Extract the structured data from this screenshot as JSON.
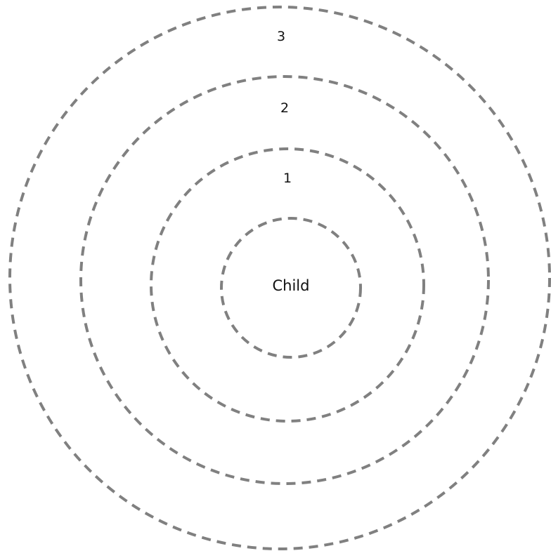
{
  "colors": {
    "ring_stroke": "#808080",
    "text": "#111111",
    "background": "#ffffff"
  },
  "diagram": {
    "center_label": "Child",
    "rings": [
      {
        "label": "1"
      },
      {
        "label": "2"
      },
      {
        "label": "3"
      }
    ]
  }
}
